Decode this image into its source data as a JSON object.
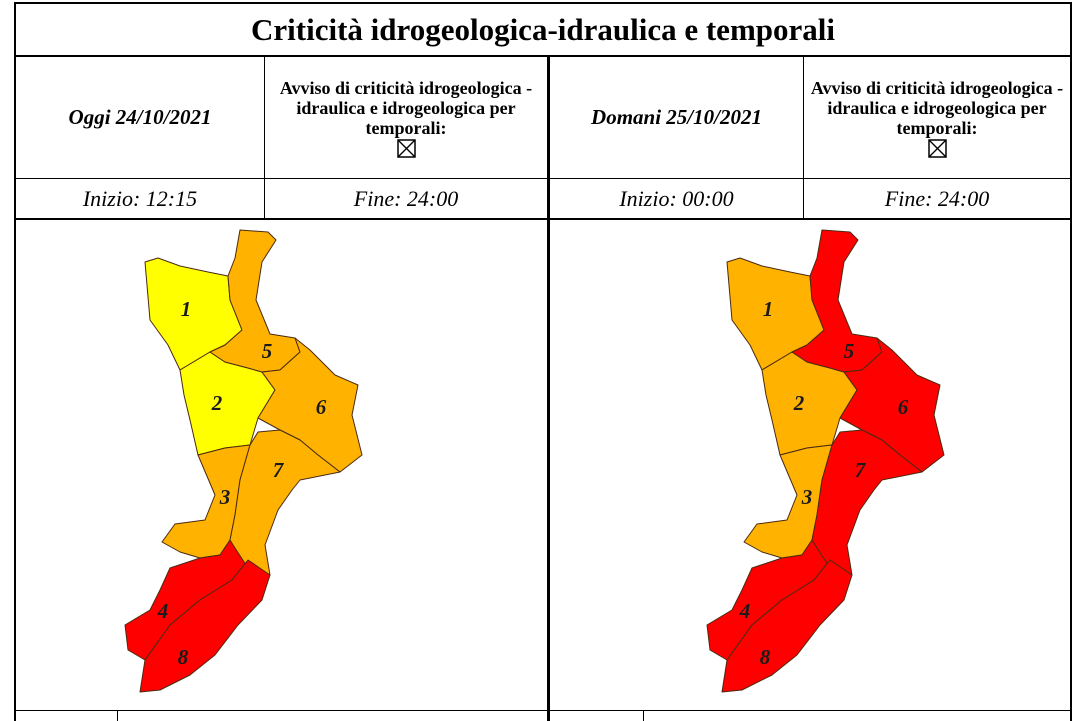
{
  "title": "Criticità idrogeologica-idraulica e temporali",
  "colors": {
    "level_yellow": "#ffff00",
    "level_orange": "#ffb300",
    "level_red": "#ff0000",
    "border": "#000000"
  },
  "today": {
    "date_label": "Oggi 24/10/2021",
    "alert_text": "Avviso di criticità idrogeologica - idraulica e idrogeologica per temporali:",
    "alert_checked": true,
    "start": "Inizio: 12:15",
    "end": "Fine: 24:00",
    "zones": [
      {
        "id": "1",
        "level": "yellow"
      },
      {
        "id": "2",
        "level": "yellow"
      },
      {
        "id": "3",
        "level": "orange"
      },
      {
        "id": "4",
        "level": "red"
      },
      {
        "id": "5",
        "level": "orange"
      },
      {
        "id": "6",
        "level": "orange"
      },
      {
        "id": "7",
        "level": "orange"
      },
      {
        "id": "8",
        "level": "red"
      }
    ]
  },
  "tomorrow": {
    "date_label": "Domani 25/10/2021",
    "alert_text": "Avviso di criticità idrogeologica - idraulica e idrogeologica per temporali:",
    "alert_checked": true,
    "start": "Inizio: 00:00",
    "end": "Fine: 24:00",
    "zones": [
      {
        "id": "1",
        "level": "orange"
      },
      {
        "id": "2",
        "level": "orange"
      },
      {
        "id": "3",
        "level": "orange"
      },
      {
        "id": "4",
        "level": "red"
      },
      {
        "id": "5",
        "level": "red"
      },
      {
        "id": "6",
        "level": "red"
      },
      {
        "id": "7",
        "level": "red"
      },
      {
        "id": "8",
        "level": "red"
      }
    ]
  }
}
